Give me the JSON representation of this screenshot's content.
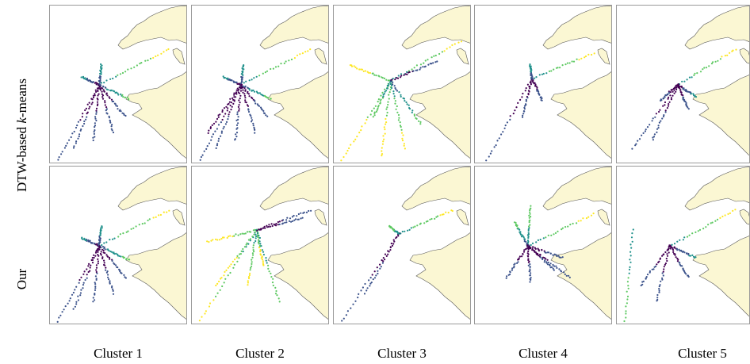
{
  "rows": [
    {
      "label_prefix": "DTW-based ",
      "label_italic": "k",
      "label_suffix": "-means"
    },
    {
      "label_prefix": "Our",
      "label_italic": "",
      "label_suffix": ""
    }
  ],
  "columns": [
    "Cluster 1",
    "Cluster 2",
    "Cluster 3",
    "Cluster 4",
    "Cluster 5"
  ],
  "colors": {
    "land": "#fbf7d3",
    "coast": "#555555",
    "frame": "#9a9a9a",
    "colormap": [
      "#440154",
      "#3b528b",
      "#21918c",
      "#5ec962",
      "#fde725"
    ]
  },
  "map": "english-channel-brittany-coastline"
}
